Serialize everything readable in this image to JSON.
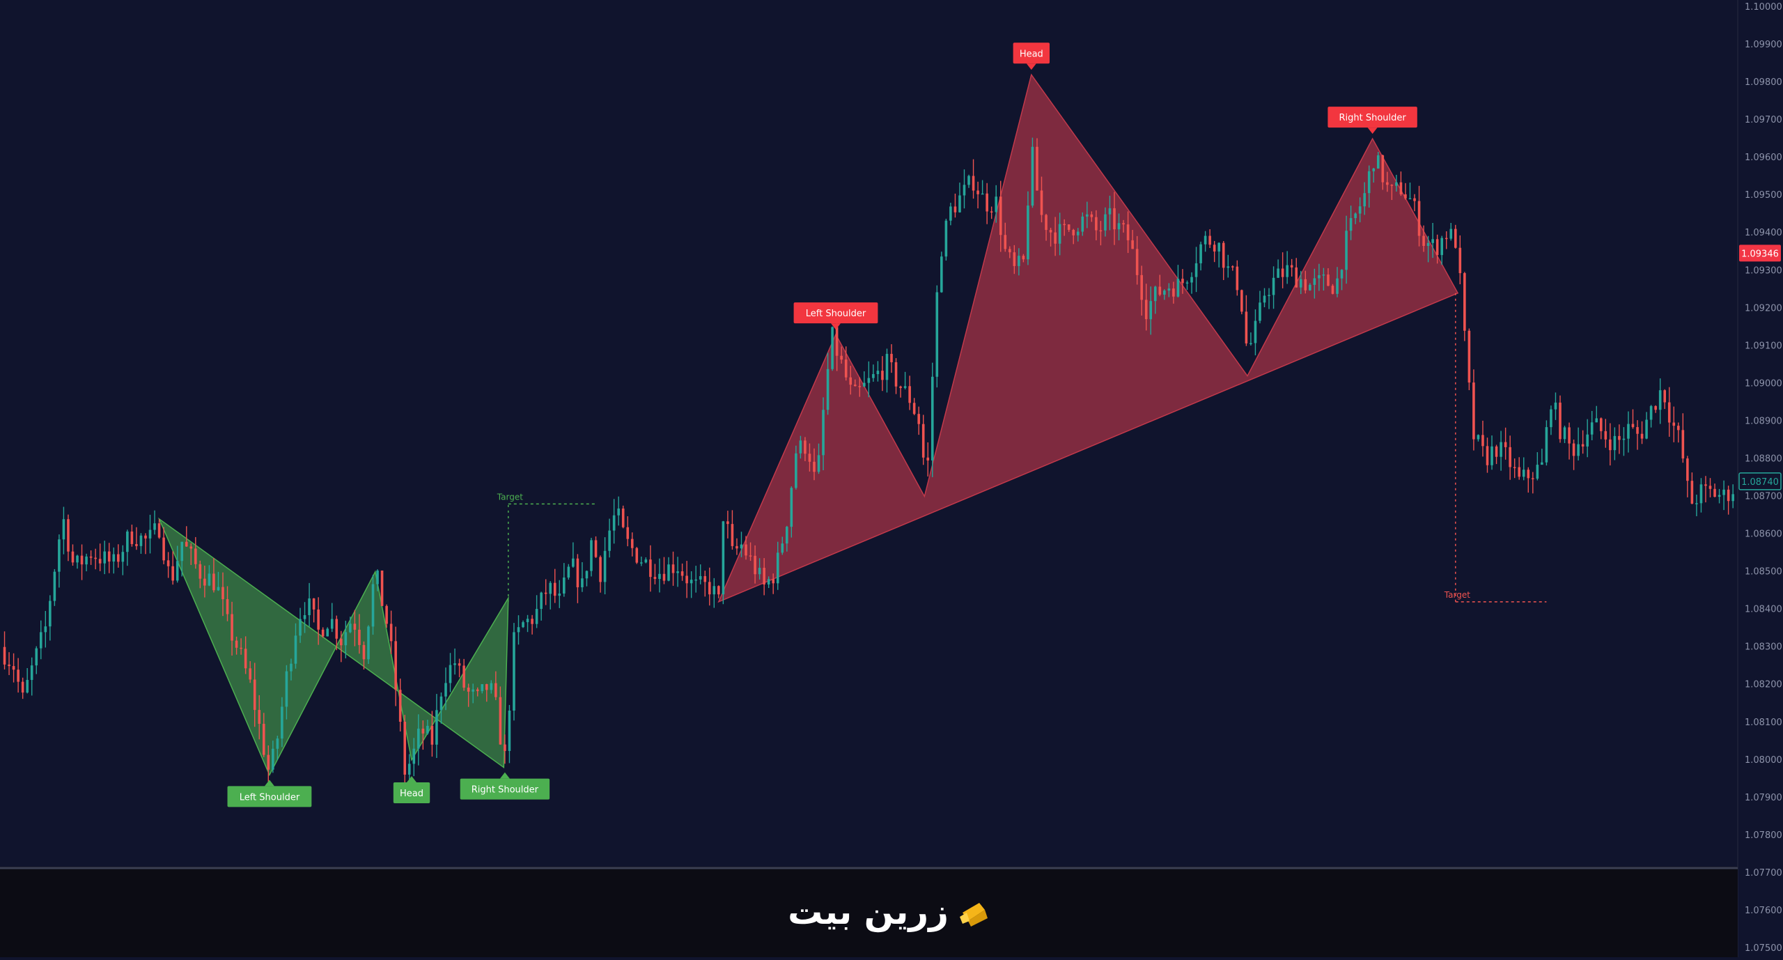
{
  "chart_data": {
    "type": "candlestick",
    "title": "",
    "xlabel": "",
    "ylabel": "",
    "ylim": [
      1.075,
      1.1
    ],
    "y_ticks": [
      "1.10000",
      "1.09900",
      "1.09800",
      "1.09700",
      "1.09600",
      "1.09500",
      "1.09400",
      "1.09300",
      "1.09200",
      "1.09100",
      "1.09000",
      "1.08900",
      "1.08800",
      "1.08700",
      "1.08600",
      "1.08500",
      "1.08400",
      "1.08300",
      "1.08200",
      "1.08100",
      "1.08000",
      "1.07900",
      "1.07800",
      "1.07700",
      "1.07600",
      "1.07500"
    ],
    "current_price_label": "1.09346",
    "secondary_price_label": "1.08740",
    "colors": {
      "background": "#10142d",
      "up": "#26a69a",
      "down": "#ef5350",
      "bullish_pattern": "#4caf50",
      "bearish_pattern": "#c2394b",
      "axis_text": "#8d93aa"
    },
    "close_path": [
      [
        0,
        1.083
      ],
      [
        12,
        1.0825
      ],
      [
        20,
        1.0816
      ],
      [
        30,
        1.0826
      ],
      [
        40,
        1.0835
      ],
      [
        55,
        1.0865
      ],
      [
        65,
        1.0851
      ],
      [
        80,
        1.0855
      ],
      [
        100,
        1.0852
      ],
      [
        115,
        1.086
      ],
      [
        130,
        1.0858
      ],
      [
        140,
        1.0862
      ],
      [
        150,
        1.0847
      ],
      [
        160,
        1.0858
      ],
      [
        175,
        1.085
      ],
      [
        190,
        1.0847
      ],
      [
        200,
        1.0836
      ],
      [
        210,
        1.0829
      ],
      [
        220,
        1.082
      ],
      [
        230,
        1.0806
      ],
      [
        237,
        1.0796
      ],
      [
        244,
        1.0806
      ],
      [
        252,
        1.0822
      ],
      [
        262,
        1.0838
      ],
      [
        270,
        1.0842
      ],
      [
        280,
        1.0834
      ],
      [
        290,
        1.0838
      ],
      [
        300,
        1.0832
      ],
      [
        310,
        1.0838
      ],
      [
        320,
        1.0829
      ],
      [
        330,
        1.085
      ],
      [
        336,
        1.0842
      ],
      [
        342,
        1.0834
      ],
      [
        350,
        1.0814
      ],
      [
        356,
        1.0797
      ],
      [
        362,
        1.08
      ],
      [
        370,
        1.0808
      ],
      [
        380,
        1.0805
      ],
      [
        390,
        1.0822
      ],
      [
        400,
        1.0826
      ],
      [
        410,
        1.0818
      ],
      [
        420,
        1.0816
      ],
      [
        430,
        1.082
      ],
      [
        438,
        1.0812
      ],
      [
        443,
        1.0798
      ],
      [
        447,
        1.0808
      ],
      [
        450,
        1.083
      ],
      [
        460,
        1.0836
      ],
      [
        470,
        1.0838
      ],
      [
        482,
        1.0846
      ],
      [
        492,
        1.0842
      ],
      [
        502,
        1.0852
      ],
      [
        512,
        1.0846
      ],
      [
        520,
        1.0858
      ],
      [
        528,
        1.085
      ],
      [
        535,
        1.086
      ],
      [
        542,
        1.0866
      ],
      [
        550,
        1.0858
      ],
      [
        565,
        1.0853
      ],
      [
        580,
        1.085
      ],
      [
        595,
        1.0852
      ],
      [
        610,
        1.0846
      ],
      [
        625,
        1.0846
      ],
      [
        632,
        1.0842
      ],
      [
        637,
        1.0871
      ],
      [
        642,
        1.0854
      ],
      [
        652,
        1.0857
      ],
      [
        662,
        1.0852
      ],
      [
        672,
        1.0846
      ],
      [
        682,
        1.085
      ],
      [
        692,
        1.0864
      ],
      [
        700,
        1.0882
      ],
      [
        710,
        1.0884
      ],
      [
        718,
        1.0872
      ],
      [
        726,
        1.0899
      ],
      [
        732,
        1.0912
      ],
      [
        740,
        1.0905
      ],
      [
        750,
        1.0896
      ],
      [
        760,
        1.0899
      ],
      [
        770,
        1.0902
      ],
      [
        780,
        1.0905
      ],
      [
        790,
        1.09
      ],
      [
        800,
        1.0896
      ],
      [
        808,
        1.089
      ],
      [
        815,
        1.0873
      ],
      [
        820,
        1.0902
      ],
      [
        826,
        1.0934
      ],
      [
        836,
        1.0946
      ],
      [
        846,
        1.095
      ],
      [
        856,
        1.0954
      ],
      [
        866,
        1.0948
      ],
      [
        876,
        1.0948
      ],
      [
        884,
        1.0935
      ],
      [
        892,
        1.093
      ],
      [
        900,
        1.0932
      ],
      [
        907,
        1.0962
      ],
      [
        915,
        1.0945
      ],
      [
        925,
        1.094
      ],
      [
        935,
        1.094
      ],
      [
        945,
        1.0942
      ],
      [
        955,
        1.0944
      ],
      [
        965,
        1.094
      ],
      [
        975,
        1.0944
      ],
      [
        985,
        1.0941
      ],
      [
        993,
        1.0938
      ],
      [
        1000,
        1.093
      ],
      [
        1008,
        1.092
      ],
      [
        1018,
        1.0924
      ],
      [
        1028,
        1.0926
      ],
      [
        1038,
        1.0926
      ],
      [
        1048,
        1.0931
      ],
      [
        1058,
        1.0938
      ],
      [
        1070,
        1.0938
      ],
      [
        1080,
        1.093
      ],
      [
        1090,
        1.0926
      ],
      [
        1097,
        1.0908
      ],
      [
        1105,
        1.0915
      ],
      [
        1112,
        1.0924
      ],
      [
        1122,
        1.0928
      ],
      [
        1132,
        1.093
      ],
      [
        1142,
        1.0928
      ],
      [
        1152,
        1.0926
      ],
      [
        1165,
        1.0927
      ],
      [
        1175,
        1.0926
      ],
      [
        1182,
        1.0936
      ],
      [
        1190,
        1.0943
      ],
      [
        1200,
        1.095
      ],
      [
        1208,
        1.096
      ],
      [
        1215,
        1.0956
      ],
      [
        1222,
        1.095
      ],
      [
        1232,
        1.0952
      ],
      [
        1242,
        1.0948
      ],
      [
        1252,
        1.0938
      ],
      [
        1262,
        1.0936
      ],
      [
        1272,
        1.094
      ],
      [
        1280,
        1.0938
      ],
      [
        1285,
        1.0924
      ],
      [
        1290,
        1.0904
      ],
      [
        1296,
        1.0886
      ],
      [
        1306,
        1.088
      ],
      [
        1316,
        1.0883
      ],
      [
        1326,
        1.088
      ],
      [
        1336,
        1.0874
      ],
      [
        1346,
        1.0876
      ],
      [
        1356,
        1.0878
      ],
      [
        1364,
        1.0896
      ],
      [
        1372,
        1.0888
      ],
      [
        1382,
        1.0882
      ],
      [
        1392,
        1.0886
      ],
      [
        1402,
        1.0889
      ],
      [
        1412,
        1.0886
      ],
      [
        1422,
        1.0884
      ],
      [
        1432,
        1.0888
      ],
      [
        1442,
        1.0886
      ],
      [
        1452,
        1.0893
      ],
      [
        1462,
        1.0899
      ],
      [
        1470,
        1.089
      ],
      [
        1478,
        1.0884
      ],
      [
        1486,
        1.0868
      ],
      [
        1496,
        1.0871
      ],
      [
        1506,
        1.0871
      ],
      [
        1516,
        1.087
      ],
      [
        1524,
        1.0872
      ]
    ],
    "patterns": [
      {
        "name": "inverse-head-and-shoulders",
        "fill": "#4caf50",
        "polygon": [
          [
            140,
            1.0864
          ],
          [
            237,
            1.0796
          ],
          [
            330,
            1.085
          ],
          [
            362,
            1.08
          ],
          [
            447,
            1.0843
          ],
          [
            443,
            1.0798
          ]
        ],
        "labels": [
          {
            "text": "Left Shoulder",
            "x": 237,
            "y": 1.0796
          },
          {
            "text": "Head",
            "x": 362,
            "y": 1.0797
          },
          {
            "text": "Right Shoulder",
            "x": 444,
            "y": 1.0798
          }
        ],
        "target": {
          "text": "Target",
          "x1": 447,
          "x2": 525,
          "y": 1.0868
        }
      },
      {
        "name": "head-and-shoulders",
        "fill": "#c2394b",
        "polygon": [
          [
            632,
            1.0842
          ],
          [
            735,
            1.0913
          ],
          [
            813,
            1.087
          ],
          [
            907,
            1.0982
          ],
          [
            1097,
            1.0902
          ],
          [
            1207,
            1.0965
          ],
          [
            1282,
            1.0924
          ]
        ],
        "labels": [
          {
            "text": "Left Shoulder",
            "x": 735,
            "y": 1.0913
          },
          {
            "text": "Head",
            "x": 907,
            "y": 1.0982
          },
          {
            "text": "Right Shoulder",
            "x": 1207,
            "y": 1.0965
          }
        ],
        "target": {
          "text": "Target",
          "x1": 1280,
          "x2": 1360,
          "y": 1.0842
        }
      }
    ]
  },
  "footer": {
    "brand_text": "زرین بیت",
    "logo_icon": "zarrin-bit-logo-icon"
  }
}
